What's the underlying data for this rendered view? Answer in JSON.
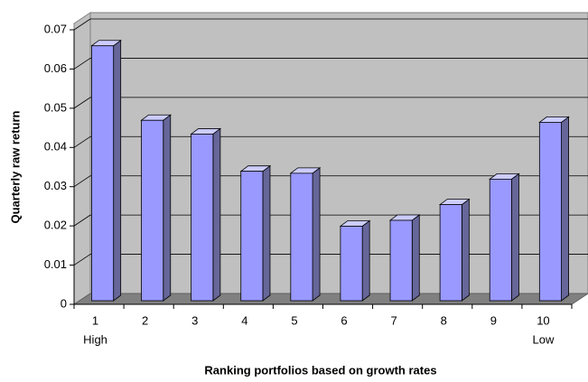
{
  "chart_data": {
    "type": "bar3d",
    "x_label": "Ranking portfolios based on growth rates",
    "y_label": "Quarterly raw return",
    "categories": [
      "1",
      "2",
      "3",
      "4",
      "5",
      "6",
      "7",
      "8",
      "9",
      "10"
    ],
    "category_notes": [
      "High",
      null,
      null,
      null,
      null,
      null,
      null,
      null,
      null,
      "Low"
    ],
    "values": [
      0.065,
      0.046,
      0.0425,
      0.033,
      0.0325,
      0.019,
      0.0205,
      0.0245,
      0.031,
      0.0455
    ],
    "color": "#9999ff",
    "ylim": [
      0,
      0.07
    ],
    "yticks": [
      0,
      0.01,
      0.02,
      0.03,
      0.04,
      0.05,
      0.06,
      0.07
    ],
    "grid": true
  }
}
